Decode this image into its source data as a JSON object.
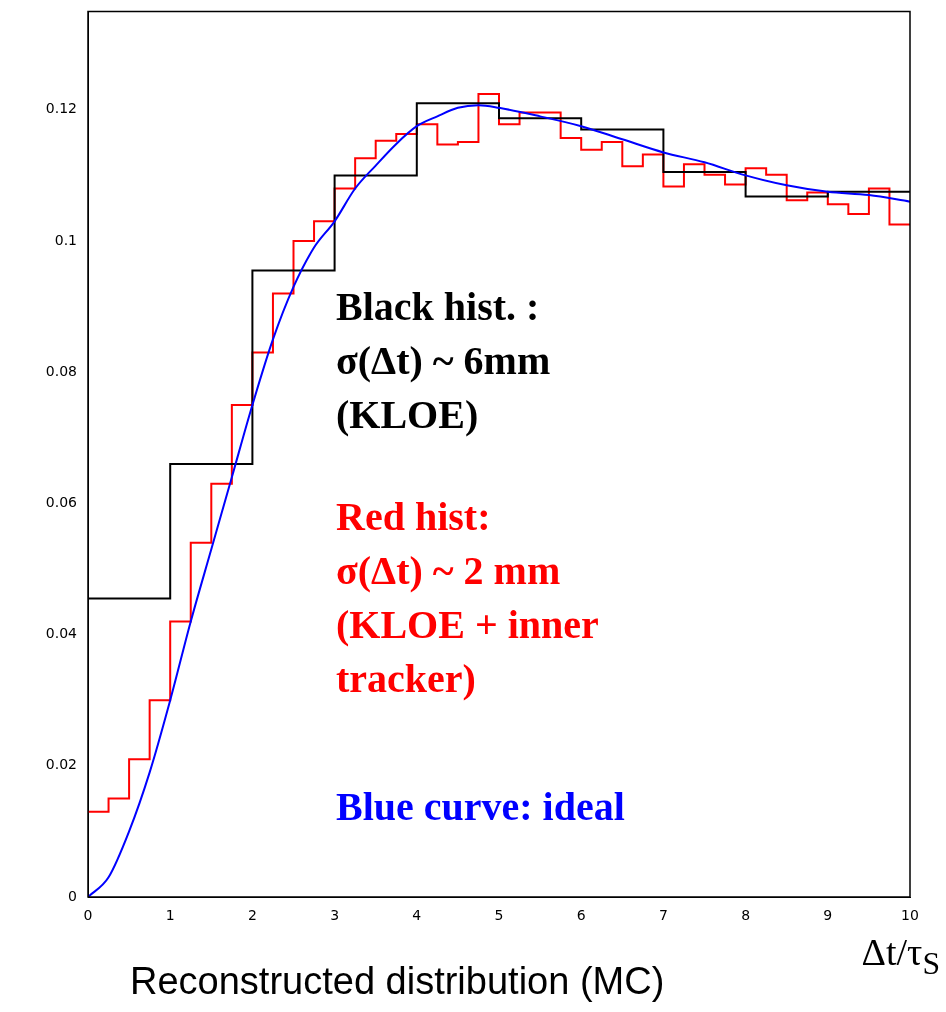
{
  "chart_data": {
    "type": "step",
    "title": "Reconstructed distribution (MC)",
    "xlabel": "Δt/τ$_{S}$",
    "annotations": [
      "Black hist. :\nσ(Δt) ~ 6mm\n(KLOE)",
      "Red hist:\nσ(Δt) ~ 2 mm\n(KLOE + inner\ntracker)",
      "Blue curve: ideal"
    ],
    "xlim": [
      0,
      10
    ],
    "ylim": [
      0,
      0.135
    ],
    "xticks": [
      0,
      1,
      2,
      3,
      4,
      5,
      6,
      7,
      8,
      9,
      10
    ],
    "yticks": [
      0,
      0.02,
      0.04,
      0.06,
      0.08,
      0.1,
      0.12
    ],
    "legend": false,
    "series": [
      {
        "color": "#000000",
        "x": [
          0,
          1,
          2,
          3,
          4,
          5,
          6,
          7,
          8,
          9,
          10
        ],
        "values": [
          0.0455,
          0.066,
          0.0955,
          0.11,
          0.121,
          0.1187,
          0.117,
          0.1105,
          0.1068,
          0.1075,
          0.1075
        ]
      },
      {
        "color": "#ff0000",
        "x": [
          0,
          0.25,
          0.5,
          0.75,
          1,
          1.25,
          1.5,
          1.75,
          2,
          2.25,
          2.5,
          2.75,
          3,
          3.25,
          3.5,
          3.75,
          4,
          4.25,
          4.5,
          4.75,
          5,
          5.25,
          5.5,
          5.75,
          6,
          6.25,
          6.5,
          6.75,
          7,
          7.25,
          7.5,
          7.75,
          8,
          8.25,
          8.5,
          8.75,
          9,
          9.25,
          9.5,
          9.75,
          10
        ],
        "values": [
          0.013,
          0.015,
          0.021,
          0.03,
          0.042,
          0.054,
          0.063,
          0.075,
          0.083,
          0.092,
          0.1,
          0.103,
          0.108,
          0.1126,
          0.1153,
          0.1163,
          0.1178,
          0.1147,
          0.1151,
          0.1224,
          0.1178,
          0.1196,
          0.1196,
          0.1157,
          0.1139,
          0.1151,
          0.1114,
          0.1132,
          0.1083,
          0.1117,
          0.1101,
          0.1086,
          0.1111,
          0.1101,
          0.1062,
          0.1074,
          0.1056,
          0.1041,
          0.108,
          0.1025,
          0.1025
        ]
      },
      {
        "type": "line",
        "color": "#0000ff",
        "x": [
          0,
          0.25,
          0.5,
          0.75,
          1,
          1.25,
          1.5,
          1.75,
          2,
          2.25,
          2.5,
          2.75,
          3,
          3.25,
          3.5,
          3.75,
          4,
          4.25,
          4.5,
          4.75,
          5,
          5.5,
          6,
          6.5,
          7,
          7.5,
          8,
          8.5,
          9,
          9.5,
          10
        ],
        "values": [
          0,
          0.003,
          0.01,
          0.019,
          0.03,
          0.042,
          0.053,
          0.064,
          0.075,
          0.085,
          0.093,
          0.099,
          0.103,
          0.108,
          0.1115,
          0.1148,
          0.1175,
          0.119,
          0.1203,
          0.1207,
          0.1203,
          0.119,
          0.1175,
          0.1155,
          0.1135,
          0.112,
          0.11,
          0.1085,
          0.1075,
          0.107,
          0.106
        ]
      }
    ]
  }
}
